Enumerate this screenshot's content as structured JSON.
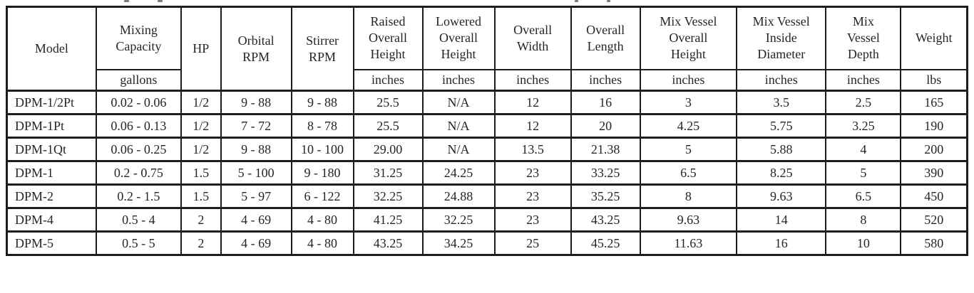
{
  "table": {
    "colors": {
      "border": "#1e1c1c",
      "text": "#282425",
      "background": "#ffffff"
    },
    "columns": [
      {
        "label": "Model",
        "unit": ""
      },
      {
        "label": "Mixing\nCapacity",
        "unit": "gallons"
      },
      {
        "label": "HP",
        "unit": ""
      },
      {
        "label": "Orbital\nRPM",
        "unit": ""
      },
      {
        "label": "Stirrer\nRPM",
        "unit": ""
      },
      {
        "label": "Raised\nOverall\nHeight",
        "unit": "inches"
      },
      {
        "label": "Lowered\nOverall\nHeight",
        "unit": "inches"
      },
      {
        "label": "Overall\nWidth",
        "unit": "inches"
      },
      {
        "label": "Overall\nLength",
        "unit": "inches"
      },
      {
        "label": "Mix Vessel\nOverall\nHeight",
        "unit": "inches"
      },
      {
        "label": "Mix Vessel\nInside\nDiameter",
        "unit": "inches"
      },
      {
        "label": "Mix\nVessel\nDepth",
        "unit": "inches"
      },
      {
        "label": "Weight",
        "unit": "lbs"
      }
    ],
    "rows": [
      [
        "DPM-1/2Pt",
        "0.02 - 0.06",
        "1/2",
        "9 - 88",
        "9 - 88",
        "25.5",
        "N/A",
        "12",
        "16",
        "3",
        "3.5",
        "2.5",
        "165"
      ],
      [
        "DPM-1Pt",
        "0.06 - 0.13",
        "1/2",
        "7 - 72",
        "8 - 78",
        "25.5",
        "N/A",
        "12",
        "20",
        "4.25",
        "5.75",
        "3.25",
        "190"
      ],
      [
        "DPM-1Qt",
        "0.06 - 0.25",
        "1/2",
        "9 - 88",
        "10 - 100",
        "29.00",
        "N/A",
        "13.5",
        "21.38",
        "5",
        "5.88",
        "4",
        "200"
      ],
      [
        "DPM-1",
        "0.2 - 0.75",
        "1.5",
        "5 - 100",
        "9 - 180",
        "31.25",
        "24.25",
        "23",
        "33.25",
        "6.5",
        "8.25",
        "5",
        "390"
      ],
      [
        "DPM-2",
        "0.2 - 1.5",
        "1.5",
        "5 - 97",
        "6 - 122",
        "32.25",
        "24.88",
        "23",
        "35.25",
        "8",
        "9.63",
        "6.5",
        "450"
      ],
      [
        "DPM-4",
        "0.5 - 4",
        "2",
        "4 - 69",
        "4 - 80",
        "41.25",
        "32.25",
        "23",
        "43.25",
        "9.63",
        "14",
        "8",
        "520"
      ],
      [
        "DPM-5",
        "0.5 - 5",
        "2",
        "4 - 69",
        "4 - 80",
        "43.25",
        "34.25",
        "25",
        "45.25",
        "11.63",
        "16",
        "10",
        "580"
      ]
    ]
  }
}
